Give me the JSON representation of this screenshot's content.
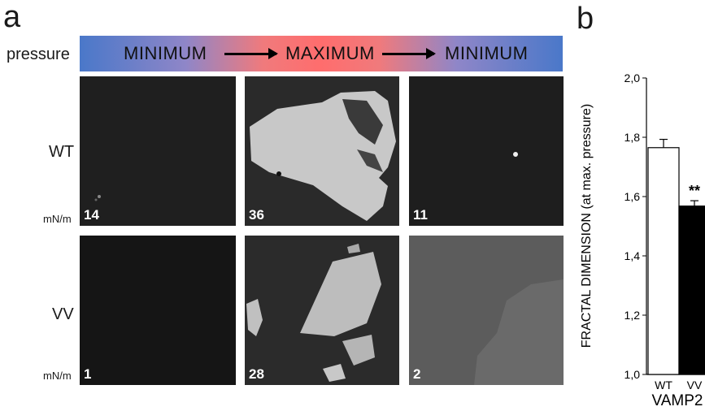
{
  "panel_labels": {
    "a": "a",
    "b": "b"
  },
  "pressure": {
    "label": "pressure",
    "stages": [
      "MINIMUM",
      "MAXIMUM",
      "MINIMUM"
    ],
    "colors": {
      "min": "#4a78c9",
      "max": "#ff6d6d"
    }
  },
  "rows": [
    {
      "label": "WT",
      "unit": "mN/m",
      "values": [
        "14",
        "36",
        "11"
      ]
    },
    {
      "label": "VV",
      "unit": "mN/m",
      "values": [
        "1",
        "28",
        "2"
      ]
    }
  ],
  "chart_data": {
    "type": "bar",
    "categories": [
      "WT",
      "VV"
    ],
    "values": [
      1.765,
      1.568
    ],
    "errors": [
      0.028,
      0.018
    ],
    "bar_colors": [
      "#ffffff",
      "#000000"
    ],
    "ylabel": "FRACTAL DIMENSION (at max. pressure)",
    "xlabel": "VAMP2",
    "ylim": [
      1.0,
      2.0
    ],
    "yticks": [
      "1,0",
      "1,2",
      "1,4",
      "1,6",
      "1,8",
      "2,0"
    ],
    "annotation": "**"
  }
}
